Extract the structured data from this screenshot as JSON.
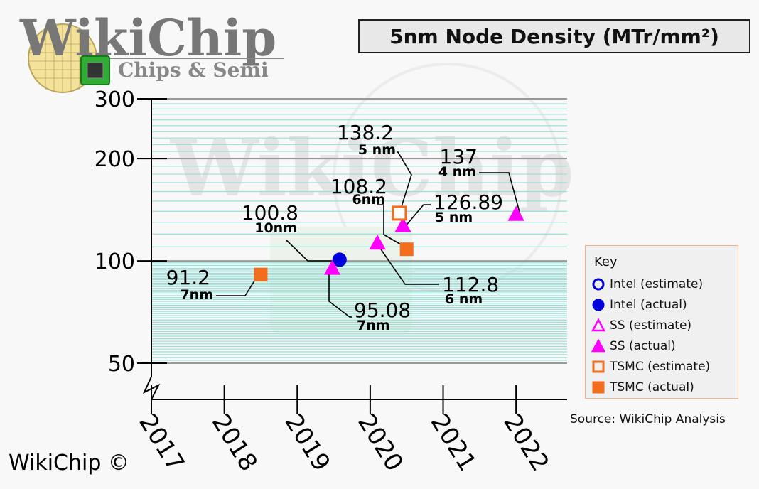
{
  "brand": {
    "logo_main": "WikiChip",
    "logo_sub": "Chips & Semi",
    "watermark": "WikiChip",
    "copyright": "WikiChip ©",
    "source": "Source: WikiChip Analysis"
  },
  "chart_data": {
    "type": "scatter",
    "title": "5nm Node Density (MTr/mm²)",
    "xlabel": "",
    "ylabel": "",
    "x_ticks": [
      "2017",
      "2018",
      "2019",
      "2020",
      "2021",
      "2022"
    ],
    "y_ticks": [
      "300",
      "200",
      "100",
      "50"
    ],
    "y_scale": "log",
    "ylim": [
      50,
      300
    ],
    "xlim": [
      2017,
      2022.7
    ],
    "grid": true,
    "legend_title": "Key",
    "legend_position": "right",
    "series": [
      {
        "name": "Intel (estimate)",
        "marker": "circle",
        "filled": false,
        "color": "#0000dd",
        "points": []
      },
      {
        "name": "Intel (actual)",
        "marker": "circle",
        "filled": true,
        "color": "#0000dd",
        "points": [
          {
            "x": 2019.58,
            "y": 100.8,
            "value": "100.8",
            "node": "10nm"
          }
        ]
      },
      {
        "name": "SS (estimate)",
        "marker": "triangle",
        "filled": false,
        "color": "#ff00ff",
        "points": []
      },
      {
        "name": "SS (actual)",
        "marker": "triangle",
        "filled": true,
        "color": "#ff00ff",
        "points": [
          {
            "x": 2019.48,
            "y": 95.08,
            "value": "95.08",
            "node": "7nm"
          },
          {
            "x": 2020.1,
            "y": 112.8,
            "value": "112.8",
            "node": "6 nm"
          },
          {
            "x": 2020.45,
            "y": 126.89,
            "value": "126.89",
            "node": "5 nm"
          },
          {
            "x": 2022.0,
            "y": 137,
            "value": "137",
            "node": "4 nm"
          }
        ]
      },
      {
        "name": "TSMC (estimate)",
        "marker": "square",
        "filled": false,
        "color": "#f26d1d",
        "points": [
          {
            "x": 2020.4,
            "y": 138.2,
            "value": "138.2",
            "node": "5 nm"
          }
        ]
      },
      {
        "name": "TSMC (actual)",
        "marker": "square",
        "filled": true,
        "color": "#f26d1d",
        "points": [
          {
            "x": 2018.5,
            "y": 91.2,
            "value": "91.2",
            "node": "7nm"
          },
          {
            "x": 2020.5,
            "y": 108.2,
            "value": "108.2",
            "node": "6nm"
          }
        ]
      }
    ]
  }
}
